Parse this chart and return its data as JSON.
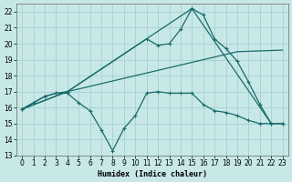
{
  "xlabel": "Humidex (Indice chaleur)",
  "xlim": [
    -0.5,
    23.5
  ],
  "ylim": [
    13,
    22.5
  ],
  "yticks": [
    13,
    14,
    15,
    16,
    17,
    18,
    19,
    20,
    21,
    22
  ],
  "xticks": [
    0,
    1,
    2,
    3,
    4,
    5,
    6,
    7,
    8,
    9,
    10,
    11,
    12,
    13,
    14,
    15,
    16,
    17,
    18,
    19,
    20,
    21,
    22,
    23
  ],
  "bg_color": "#c8e8e8",
  "grid_color": "#aad4d4",
  "line_color": "#1a6b6b",
  "curve1_x": [
    0,
    1,
    2,
    3,
    4,
    5,
    6,
    7,
    8,
    9,
    10,
    11,
    12,
    13,
    14,
    15,
    16,
    17,
    18,
    19,
    20,
    21,
    22,
    23
  ],
  "curve1_y": [
    15.9,
    16.3,
    16.7,
    16.9,
    16.9,
    16.3,
    15.8,
    14.6,
    13.3,
    14.7,
    15.5,
    16.9,
    17.0,
    16.9,
    16.9,
    16.9,
    16.2,
    15.8,
    15.7,
    15.5,
    15.2,
    15.0,
    15.0,
    15.0
  ],
  "curve2_x": [
    0,
    1,
    2,
    3,
    4,
    11,
    12,
    13,
    14,
    15,
    16,
    17,
    18,
    19,
    20,
    21,
    22,
    23
  ],
  "curve2_y": [
    15.9,
    16.3,
    16.7,
    16.9,
    17.0,
    20.3,
    19.9,
    20.0,
    20.9,
    22.2,
    21.8,
    20.3,
    19.7,
    18.9,
    17.6,
    16.2,
    15.0,
    15.0
  ],
  "line3_x": [
    0,
    4,
    15,
    22
  ],
  "line3_y": [
    15.9,
    17.0,
    22.2,
    15.0
  ],
  "line4_x": [
    0,
    4,
    19,
    23
  ],
  "line4_y": [
    15.9,
    17.0,
    19.5,
    19.6
  ]
}
